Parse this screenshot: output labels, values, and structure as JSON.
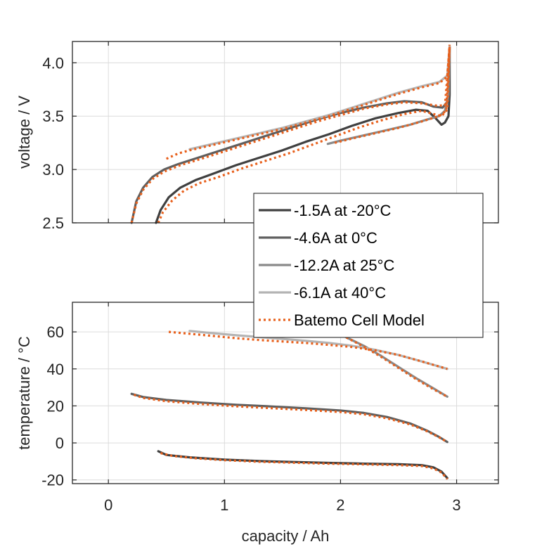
{
  "chart_data": [
    {
      "type": "line",
      "panel": "top",
      "title": "",
      "xlabel": "",
      "ylabel": "voltage / V",
      "xlim": [
        -0.31,
        3.36
      ],
      "ylim": [
        2.5,
        4.2
      ],
      "xticks": [
        0,
        1,
        2,
        3
      ],
      "xtick_labels": [],
      "yticks": [
        2.5,
        3.0,
        3.5,
        4.0
      ],
      "ytick_labels": [
        "2.5",
        "3.0",
        "3.5",
        "4.0"
      ],
      "grid": true,
      "series": [
        {
          "name": "-1.5A at -20°C",
          "kind": "measured",
          "color": "#404040",
          "x": [
            0.41,
            0.45,
            0.52,
            0.62,
            0.75,
            0.9,
            1.1,
            1.3,
            1.5,
            1.7,
            1.9,
            2.1,
            2.3,
            2.5,
            2.65,
            2.75,
            2.82,
            2.87,
            2.9,
            2.93,
            2.94,
            2.94
          ],
          "y": [
            2.5,
            2.62,
            2.74,
            2.83,
            2.9,
            2.96,
            3.04,
            3.11,
            3.18,
            3.26,
            3.33,
            3.41,
            3.48,
            3.53,
            3.56,
            3.55,
            3.48,
            3.42,
            3.44,
            3.5,
            3.7,
            4.15
          ]
        },
        {
          "name": "-4.6A at 0°C",
          "kind": "measured",
          "color": "#5f5f5f",
          "x": [
            0.2,
            0.24,
            0.3,
            0.38,
            0.48,
            0.6,
            0.8,
            1.0,
            1.2,
            1.4,
            1.6,
            1.8,
            2.0,
            2.2,
            2.4,
            2.55,
            2.7,
            2.8,
            2.88,
            2.93,
            2.94
          ],
          "y": [
            2.5,
            2.7,
            2.83,
            2.93,
            3.0,
            3.05,
            3.12,
            3.19,
            3.26,
            3.33,
            3.4,
            3.47,
            3.53,
            3.58,
            3.62,
            3.64,
            3.63,
            3.59,
            3.58,
            3.65,
            4.15
          ]
        },
        {
          "name": "-12.2A at 25°C",
          "kind": "measured",
          "color": "#8a8a8a",
          "x": [
            1.89,
            2.0,
            2.2,
            2.4,
            2.6,
            2.75,
            2.85,
            2.9,
            2.93,
            2.94
          ],
          "y": [
            3.24,
            3.27,
            3.32,
            3.37,
            3.42,
            3.47,
            3.5,
            3.55,
            3.7,
            4.15
          ]
        },
        {
          "name": "-6.1A at 40°C",
          "kind": "measured",
          "color": "#b4b4b4",
          "x": [
            0.7,
            0.9,
            1.1,
            1.3,
            1.5,
            1.7,
            1.9,
            2.1,
            2.3,
            2.5,
            2.7,
            2.85,
            2.92,
            2.94
          ],
          "y": [
            3.19,
            3.24,
            3.29,
            3.34,
            3.39,
            3.45,
            3.51,
            3.58,
            3.65,
            3.72,
            3.78,
            3.82,
            3.88,
            4.15
          ]
        },
        {
          "name": "Batemo Cell Model",
          "kind": "model",
          "ref": "-1.5A at -20°C",
          "color": "#e8601c",
          "x": [
            0.43,
            0.47,
            0.55,
            0.65,
            0.78,
            0.95,
            1.15,
            1.35,
            1.55,
            1.75,
            1.95,
            2.15,
            2.35,
            2.55,
            2.7,
            2.8,
            2.87,
            2.92,
            2.94
          ],
          "y": [
            2.5,
            2.6,
            2.71,
            2.8,
            2.87,
            2.93,
            3.01,
            3.08,
            3.15,
            3.23,
            3.31,
            3.39,
            3.46,
            3.52,
            3.55,
            3.52,
            3.5,
            3.56,
            4.15
          ]
        },
        {
          "name": "Batemo Cell Model",
          "kind": "model",
          "ref": "-4.6A at 0°C",
          "color": "#e8601c",
          "x": [
            0.2,
            0.24,
            0.3,
            0.38,
            0.48,
            0.62,
            0.8,
            1.0,
            1.2,
            1.4,
            1.6,
            1.8,
            2.0,
            2.2,
            2.4,
            2.55,
            2.7,
            2.82,
            2.9,
            2.94
          ],
          "y": [
            2.5,
            2.68,
            2.81,
            2.91,
            2.98,
            3.04,
            3.1,
            3.17,
            3.24,
            3.31,
            3.38,
            3.45,
            3.51,
            3.57,
            3.61,
            3.63,
            3.62,
            3.6,
            3.6,
            4.15
          ]
        },
        {
          "name": "Batemo Cell Model",
          "kind": "model",
          "ref": "-12.2A at 25°C",
          "color": "#e8601c",
          "x": [
            1.95,
            2.1,
            2.3,
            2.5,
            2.7,
            2.85,
            2.91,
            2.94
          ],
          "y": [
            3.25,
            3.29,
            3.34,
            3.39,
            3.45,
            3.5,
            3.55,
            4.15
          ]
        },
        {
          "name": "Batemo Cell Model",
          "kind": "model",
          "ref": "-6.1A at 40°C",
          "color": "#e8601c",
          "x": [
            0.5,
            0.6,
            0.7,
            0.9,
            1.1,
            1.3,
            1.5,
            1.7,
            1.9,
            2.1,
            2.3,
            2.5,
            2.7,
            2.85,
            2.92,
            2.94
          ],
          "y": [
            3.1,
            3.15,
            3.18,
            3.23,
            3.28,
            3.33,
            3.38,
            3.44,
            3.5,
            3.57,
            3.64,
            3.71,
            3.77,
            3.81,
            3.87,
            4.17
          ]
        }
      ]
    },
    {
      "type": "line",
      "panel": "bottom",
      "title": "",
      "xlabel": "capacity / Ah",
      "ylabel": "temperature / °C",
      "xlim": [
        -0.31,
        3.36
      ],
      "ylim": [
        -22,
        76
      ],
      "xticks": [
        0,
        1,
        2,
        3
      ],
      "xtick_labels": [
        "0",
        "1",
        "2",
        "3"
      ],
      "yticks": [
        -20,
        0,
        20,
        40,
        60
      ],
      "ytick_labels": [
        "-20",
        "0",
        "20",
        "40",
        "60"
      ],
      "grid": true,
      "series": [
        {
          "name": "-1.5A at -20°C",
          "kind": "measured",
          "color": "#404040",
          "x": [
            0.43,
            0.5,
            0.7,
            1.0,
            1.3,
            1.6,
            1.9,
            2.2,
            2.5,
            2.7,
            2.8,
            2.87,
            2.92
          ],
          "y": [
            -4.5,
            -6.5,
            -7.8,
            -9.0,
            -9.8,
            -10.3,
            -10.8,
            -11.2,
            -11.5,
            -12.0,
            -13.2,
            -15.5,
            -19
          ]
        },
        {
          "name": "-4.6A at 0°C",
          "kind": "measured",
          "color": "#5f5f5f",
          "x": [
            0.2,
            0.3,
            0.5,
            0.8,
            1.1,
            1.4,
            1.7,
            2.0,
            2.2,
            2.4,
            2.6,
            2.75,
            2.85,
            2.92
          ],
          "y": [
            26.5,
            24.8,
            23.2,
            21.8,
            20.6,
            19.7,
            18.7,
            17.5,
            16.2,
            14.0,
            10.5,
            6.5,
            3.2,
            0.5
          ]
        },
        {
          "name": "-12.2A at 25°C",
          "kind": "measured",
          "color": "#8a8a8a",
          "x": [
            1.9,
            2.05,
            2.2,
            2.35,
            2.5,
            2.65,
            2.8,
            2.92
          ],
          "y": [
            62,
            57,
            52.5,
            47,
            41,
            35,
            29.5,
            25
          ]
        },
        {
          "name": "-6.1A at 40°C",
          "kind": "measured",
          "color": "#b4b4b4",
          "x": [
            0.7,
            0.9,
            1.1,
            1.3,
            1.5,
            1.7,
            1.9,
            2.1,
            2.3,
            2.5,
            2.7,
            2.92
          ],
          "y": [
            60.5,
            59.3,
            58.2,
            57.2,
            56.2,
            55.2,
            54.0,
            52.5,
            50.3,
            47.5,
            44.0,
            40
          ]
        },
        {
          "name": "Batemo Cell Model",
          "kind": "model",
          "ref": "-1.5A at -20°C",
          "color": "#e8601c",
          "x": [
            0.45,
            0.55,
            0.75,
            1.0,
            1.3,
            1.6,
            1.9,
            2.2,
            2.5,
            2.7,
            2.8,
            2.87,
            2.92
          ],
          "y": [
            -5.5,
            -7.0,
            -8.3,
            -9.3,
            -10.2,
            -10.7,
            -11.2,
            -11.6,
            -12.0,
            -12.5,
            -13.8,
            -16,
            -19.5
          ]
        },
        {
          "name": "Batemo Cell Model",
          "kind": "model",
          "ref": "-4.6A at 0°C",
          "color": "#e8601c",
          "x": [
            0.22,
            0.3,
            0.5,
            0.8,
            1.1,
            1.4,
            1.7,
            2.0,
            2.2,
            2.4,
            2.6,
            2.75,
            2.85,
            2.92
          ],
          "y": [
            26,
            24.3,
            22.5,
            21.0,
            19.8,
            18.8,
            17.8,
            16.7,
            15.5,
            13.3,
            10.0,
            6.2,
            3.0,
            0.5
          ]
        },
        {
          "name": "Batemo Cell Model",
          "kind": "model",
          "ref": "-12.2A at 25°C",
          "color": "#e8601c",
          "x": [
            2.05,
            2.2,
            2.35,
            2.5,
            2.65,
            2.8,
            2.92
          ],
          "y": [
            57,
            52,
            46.5,
            40.5,
            34.5,
            29,
            25
          ]
        },
        {
          "name": "Batemo Cell Model",
          "kind": "model",
          "ref": "-6.1A at 40°C",
          "color": "#e8601c",
          "x": [
            0.52,
            0.7,
            0.9,
            1.1,
            1.3,
            1.5,
            1.7,
            1.9,
            2.1,
            2.3,
            2.5,
            2.7,
            2.92
          ],
          "y": [
            60,
            59.0,
            57.8,
            56.6,
            55.6,
            54.8,
            54.0,
            53.0,
            51.8,
            50.0,
            47.5,
            44.0,
            40
          ]
        }
      ]
    }
  ],
  "legend": {
    "placement": "center-right",
    "entries": [
      {
        "label": "-1.5A at -20°C",
        "color": "#404040",
        "style": "solid"
      },
      {
        "label": "-4.6A at 0°C",
        "color": "#5f5f5f",
        "style": "solid"
      },
      {
        "label": "-12.2A at 25°C",
        "color": "#8a8a8a",
        "style": "solid"
      },
      {
        "label": "-6.1A at 40°C",
        "color": "#b4b4b4",
        "style": "solid"
      },
      {
        "label": "Batemo Cell Model",
        "color": "#e8601c",
        "style": "dotted"
      }
    ]
  }
}
